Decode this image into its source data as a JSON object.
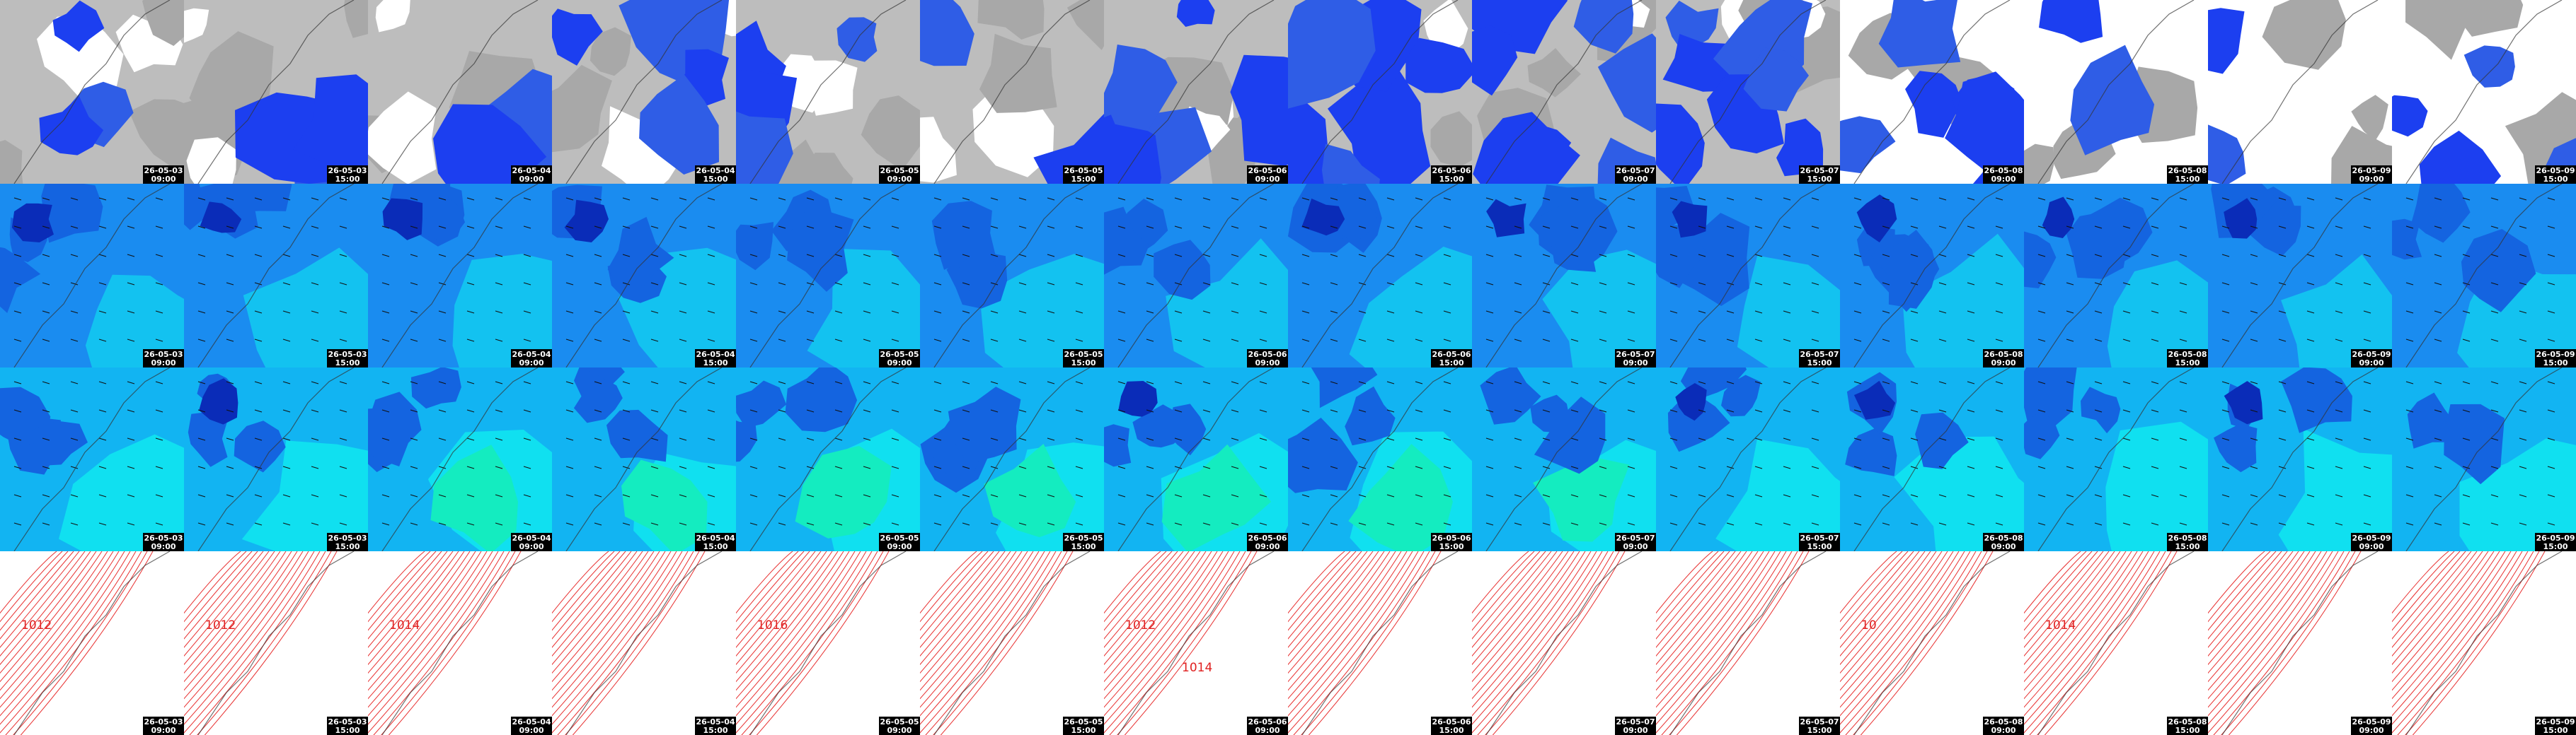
{
  "frames": [
    {
      "date": "26-05-03",
      "time": "09:00",
      "pressure_labels": [
        "1012"
      ]
    },
    {
      "date": "26-05-03",
      "time": "15:00",
      "pressure_labels": [
        "1012"
      ]
    },
    {
      "date": "26-05-04",
      "time": "09:00",
      "pressure_labels": [
        "1014"
      ]
    },
    {
      "date": "26-05-04",
      "time": "15:00",
      "pressure_labels": []
    },
    {
      "date": "26-05-05",
      "time": "09:00",
      "pressure_labels": [
        "1016"
      ]
    },
    {
      "date": "26-05-05",
      "time": "15:00",
      "pressure_labels": []
    },
    {
      "date": "26-05-06",
      "time": "09:00",
      "pressure_labels": [
        "1012",
        "1014"
      ]
    },
    {
      "date": "26-05-06",
      "time": "15:00",
      "pressure_labels": []
    },
    {
      "date": "26-05-07",
      "time": "09:00",
      "pressure_labels": []
    },
    {
      "date": "26-05-07",
      "time": "15:00",
      "pressure_labels": []
    },
    {
      "date": "26-05-08",
      "time": "09:00",
      "pressure_labels": [
        "10"
      ]
    },
    {
      "date": "26-05-08",
      "time": "15:00",
      "pressure_labels": [
        "1014"
      ]
    },
    {
      "date": "26-05-09",
      "time": "09:00",
      "pressure_labels": []
    },
    {
      "date": "26-05-09",
      "time": "15:00",
      "pressure_labels": []
    }
  ]
}
